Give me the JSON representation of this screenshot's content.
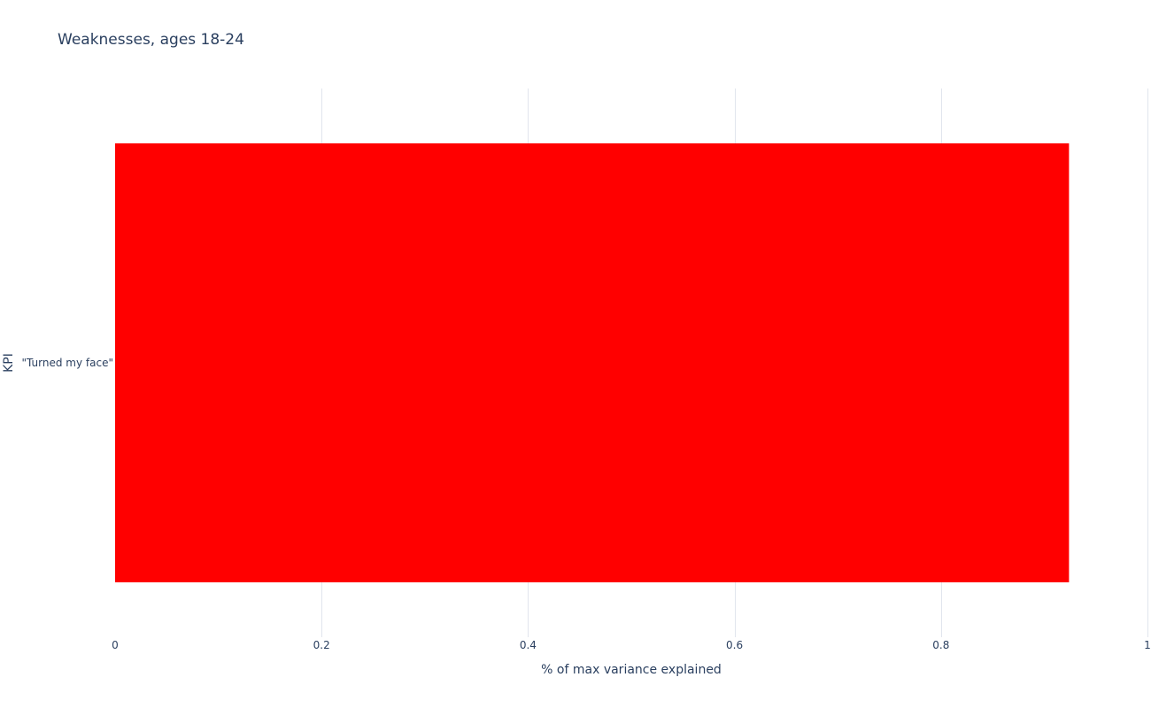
{
  "chart_data": {
    "type": "bar",
    "orientation": "horizontal",
    "title": "Weaknesses, ages 18-24",
    "xlabel": "% of max variance explained",
    "ylabel": "KPI",
    "categories": [
      "\"Turned my face\""
    ],
    "values": [
      0.924
    ],
    "xlim": [
      0,
      1
    ],
    "xticks": [
      0,
      0.2,
      0.4,
      0.6,
      0.8,
      1
    ],
    "xtick_labels": [
      "0",
      "0.2",
      "0.4",
      "0.6",
      "0.8",
      "1"
    ],
    "grid": "vertical",
    "legend": "none",
    "bar_color": "#ff0000"
  }
}
